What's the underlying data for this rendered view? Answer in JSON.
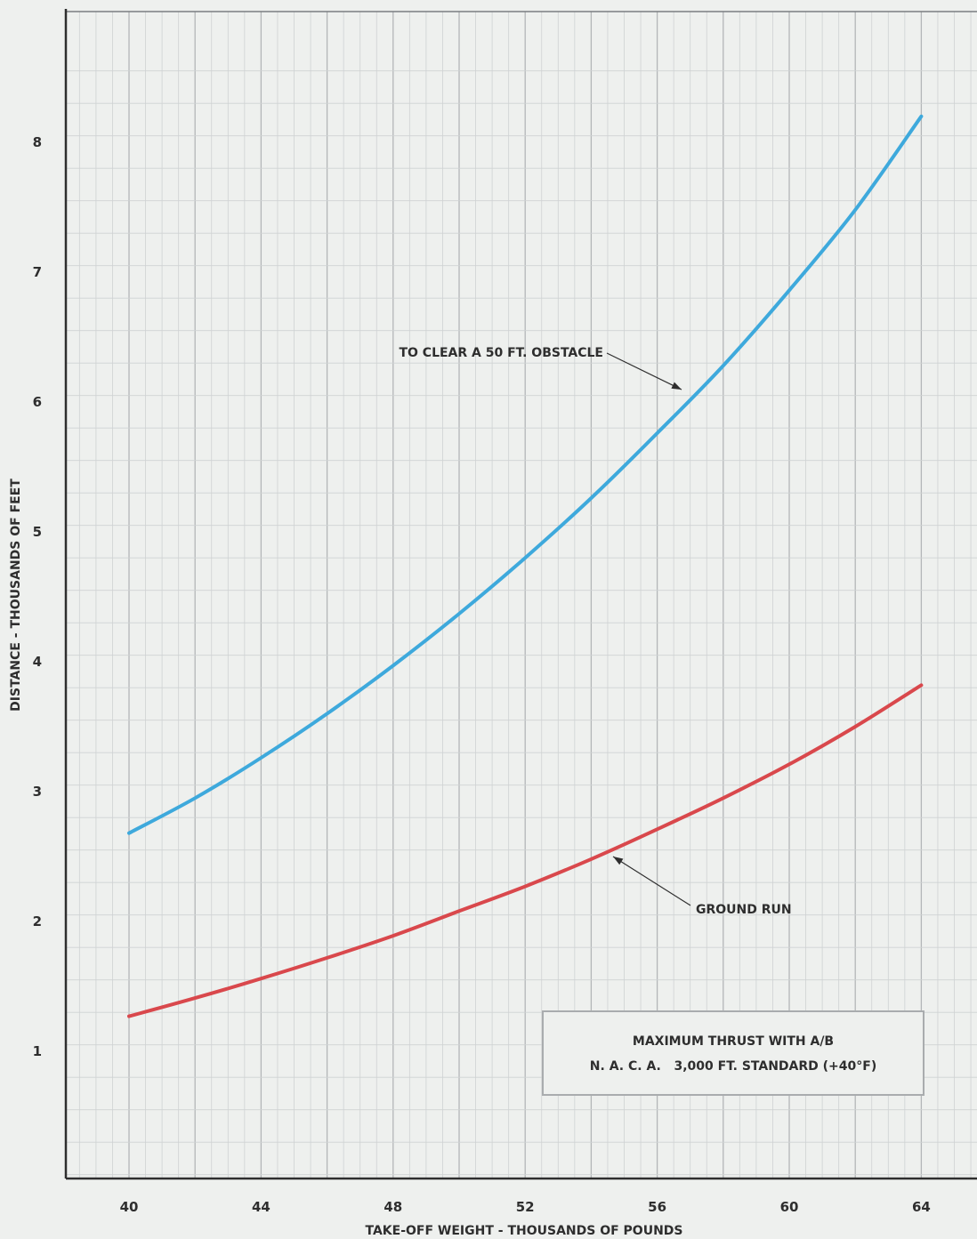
{
  "chart_data": {
    "type": "line",
    "xlabel": "TAKE-OFF WEIGHT - THOUSANDS OF POUNDS",
    "ylabel": "DISTANCE - THOUSANDS OF FEET",
    "xlim": [
      38,
      66
    ],
    "ylim": [
      -0.2,
      8.7
    ],
    "x_ticks": [
      "40",
      "44",
      "48",
      "52",
      "56",
      "60",
      "64"
    ],
    "y_ticks": [
      "1",
      "2",
      "3",
      "4",
      "5",
      "6",
      "7",
      "8"
    ],
    "grid": true,
    "series": [
      {
        "name": "TO CLEAR A 50 FT. OBSTACLE",
        "color": "#3ea9dc",
        "x": [
          40,
          42,
          44,
          46,
          48,
          50,
          52,
          54,
          56,
          58,
          60,
          62,
          64
        ],
        "y": [
          2.68,
          2.95,
          3.26,
          3.6,
          3.97,
          4.37,
          4.8,
          5.26,
          5.76,
          6.28,
          6.86,
          7.48,
          8.2
        ]
      },
      {
        "name": "GROUND RUN",
        "color": "#d9484c",
        "x": [
          40,
          42,
          44,
          46,
          48,
          50,
          52,
          54,
          56,
          58,
          60,
          62,
          64
        ],
        "y": [
          1.27,
          1.41,
          1.56,
          1.72,
          1.89,
          2.08,
          2.27,
          2.48,
          2.71,
          2.95,
          3.21,
          3.5,
          3.82
        ]
      }
    ],
    "annotations": [
      {
        "text": "TO CLEAR A 50 FT. OBSTACLE",
        "series": 0,
        "at_x": 57
      },
      {
        "text": "GROUND RUN",
        "series": 1,
        "at_x": 54.7
      }
    ],
    "info_box": {
      "line1": "MAXIMUM THRUST WITH A/B",
      "line2": "N. A. C. A.   3,000 FT. STANDARD (+40°F)"
    }
  }
}
